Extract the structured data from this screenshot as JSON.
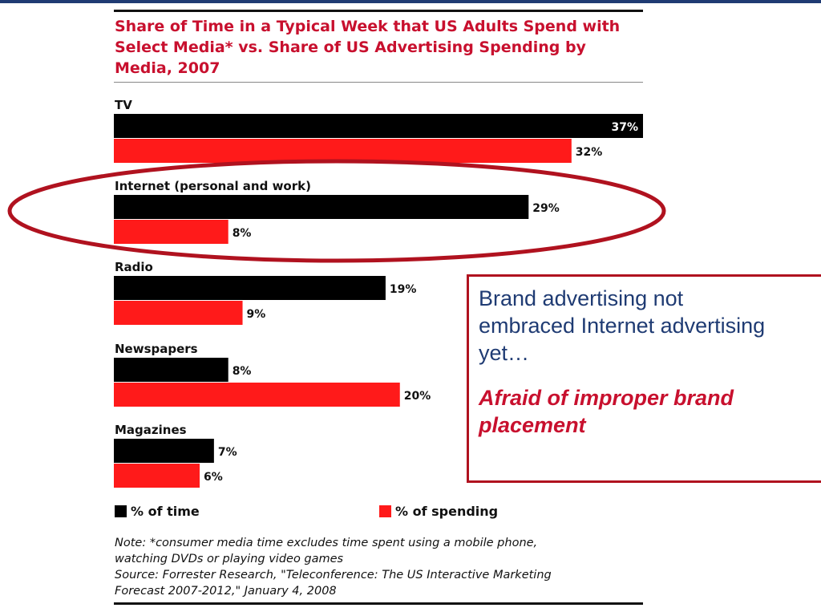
{
  "chart_data": {
    "type": "bar",
    "orientation": "horizontal",
    "title": "Share of Time in a Typical Week that US Adults Spend with Select Media* vs. Share of US Advertising Spending by Media, 2007",
    "categories": [
      "TV",
      "Internet (personal and work)",
      "Radio",
      "Newspapers",
      "Magazines"
    ],
    "series": [
      {
        "name": "% of time",
        "values": [
          37,
          29,
          19,
          8,
          7
        ],
        "color": "#000000"
      },
      {
        "name": "% of spending",
        "values": [
          32,
          8,
          9,
          20,
          6
        ],
        "color": "#ff1a1a"
      }
    ],
    "value_suffix": "%",
    "xlim": [
      0,
      37
    ],
    "grid": false,
    "legend": "bottom",
    "highlighted_category": "Internet (personal and work)",
    "highlight_color": "#b0121f",
    "note_lines": [
      "Note: *consumer media time excludes time spent using a mobile phone,",
      "watching DVDs or playing video games",
      "Source: Forrester Research, \"Teleconference: The US Interactive Marketing",
      "Forecast 2007-2012,\" January 4, 2008"
    ]
  },
  "callout": {
    "line1": "Brand advertising not",
    "line2": "embraced Internet advertising",
    "line3": "yet…",
    "emphasis_line1": "Afraid of improper brand",
    "emphasis_line2": "placement",
    "text_color": "#1f3b73",
    "emphasis_color": "#c8102e",
    "border_color": "#b0121f"
  }
}
